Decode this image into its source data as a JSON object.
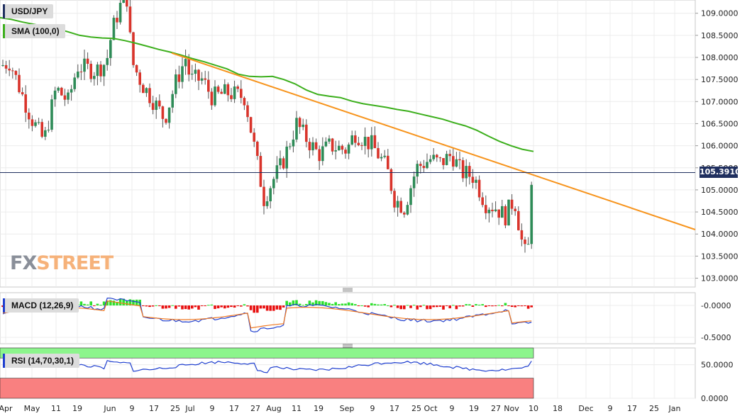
{
  "labels": {
    "pair": "USD/JPY",
    "sma": "SMA (100,0)",
    "macd": "MACD (12,26,9)",
    "rsi": "RSI (14,70,30,1)",
    "current_price": "105.3910",
    "logo_fx": "FX",
    "logo_street": "STREET"
  },
  "colors": {
    "sma": "#3caf1c",
    "trendline": "#f7941d",
    "bull": "#2e8b57",
    "bear": "#d9342b",
    "macd_line": "#1f3fcf",
    "signal_line": "#f07820",
    "hist_pos": "#2ee02e",
    "hist_neg": "#e81010",
    "rsi_line": "#1f3fcf",
    "overbought_zone": "#8cf58c",
    "oversold_zone": "#f98080",
    "price_line": "#1f2f5f"
  },
  "chart_data": [
    {
      "type": "candlestick",
      "title": "USD/JPY",
      "ylim": [
        102.8,
        109.3
      ],
      "y_ticks": [
        "109.0000",
        "108.5000",
        "108.0000",
        "107.5000",
        "107.0000",
        "106.5000",
        "106.0000",
        "105.5000",
        "105.0000",
        "104.5000",
        "104.0000",
        "103.5000",
        "103.0000"
      ],
      "x_ticks": [
        "Apr",
        "May",
        "11",
        "19",
        "Jun",
        "9",
        "17",
        "25",
        "Jul",
        "9",
        "17",
        "27",
        "Aug",
        "11",
        "19",
        "Sep",
        "9",
        "17",
        "25",
        "Oct",
        "9",
        "19",
        "27",
        "Nov",
        "10",
        "18",
        "Dec",
        "9",
        "17",
        "25",
        "Jan"
      ],
      "last_price": 105.391,
      "series": [
        {
          "name": "SMA (100,0)",
          "type": "line",
          "values": [
            108.9,
            108.86,
            108.8,
            108.75,
            108.7,
            108.65,
            108.58,
            108.5,
            108.46,
            108.44,
            108.43,
            108.38,
            108.32,
            108.25,
            108.18,
            108.12,
            108.05,
            107.97,
            107.9,
            107.82,
            107.74,
            107.62,
            107.57,
            107.56,
            107.57,
            107.5,
            107.4,
            107.26,
            107.16,
            107.12,
            107.09,
            107.01,
            106.95,
            106.91,
            106.87,
            106.82,
            106.78,
            106.72,
            106.66,
            106.6,
            106.52,
            106.45,
            106.35,
            106.22,
            106.1,
            106.0,
            105.92,
            105.87
          ]
        },
        {
          "name": "Trendline",
          "type": "line",
          "values": [
            108.1,
            104.1
          ]
        }
      ],
      "annotations": [
        "105.3910"
      ]
    },
    {
      "type": "line",
      "title": "MACD (12,26,9)",
      "ylim": [
        -0.6,
        0.2
      ],
      "y_ticks": [
        "-0.0000",
        "-0.5000"
      ]
    },
    {
      "type": "line",
      "title": "RSI (14,70,30,1)",
      "ylim": [
        0,
        75
      ],
      "y_ticks": [
        "50.0000",
        "0.0000"
      ]
    }
  ]
}
